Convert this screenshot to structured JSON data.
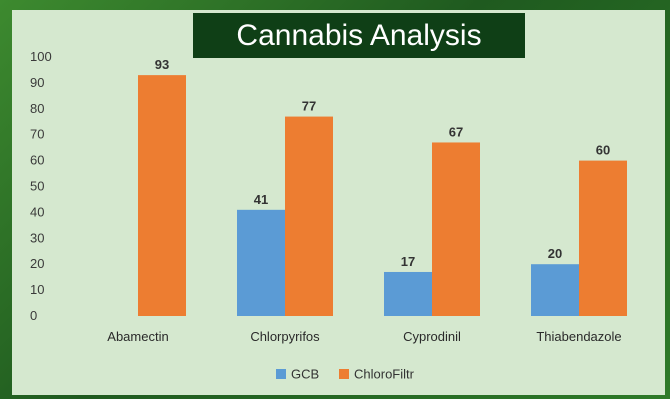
{
  "chart_data": {
    "type": "bar",
    "title": "Cannabis Analysis",
    "categories": [
      "Abamectin",
      "Chlorpyrifos",
      "Cyprodinil",
      "Thiabendazole"
    ],
    "series": [
      {
        "name": "GCB",
        "values": [
          null,
          41,
          17,
          20
        ],
        "color": "#5b9bd5"
      },
      {
        "name": "ChloroFiltr",
        "values": [
          93,
          77,
          67,
          60
        ],
        "color": "#ed7d31"
      }
    ],
    "ylim": [
      0,
      100
    ],
    "yticks": [
      0,
      10,
      20,
      30,
      40,
      50,
      60,
      70,
      80,
      90,
      100
    ],
    "grid": false,
    "legend": "bottom-center"
  }
}
